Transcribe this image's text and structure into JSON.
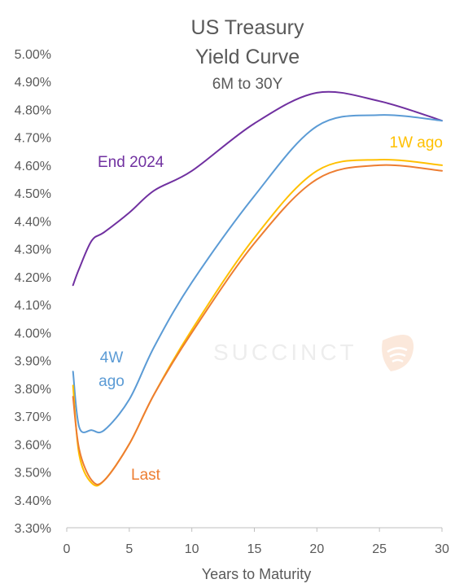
{
  "chart_data": {
    "type": "line",
    "title": [
      "US Treasury",
      "Yield Curve"
    ],
    "subtitle": "6M to 30Y",
    "xlabel": "Years to Maturity",
    "ylabel": "",
    "xlim": [
      0,
      30
    ],
    "ylim": [
      3.3,
      5.0
    ],
    "xticks": [
      0,
      5,
      10,
      15,
      20,
      25,
      30
    ],
    "yticks": [
      "3.30%",
      "3.40%",
      "3.50%",
      "3.60%",
      "3.70%",
      "3.80%",
      "3.90%",
      "4.00%",
      "4.10%",
      "4.20%",
      "4.30%",
      "4.40%",
      "4.50%",
      "4.60%",
      "4.70%",
      "4.80%",
      "4.90%",
      "5.00%"
    ],
    "grid": false,
    "watermark": "SUCCINCT",
    "series": [
      {
        "name": "End 2024",
        "color": "#7030a0",
        "label_lines": [
          "End 2024"
        ],
        "x": [
          0.5,
          1,
          2,
          3,
          5,
          7,
          10,
          15,
          20,
          25,
          30
        ],
        "values": [
          4.17,
          4.23,
          4.33,
          4.36,
          4.43,
          4.51,
          4.58,
          4.75,
          4.86,
          4.83,
          4.76
        ]
      },
      {
        "name": "4W ago",
        "color": "#5b9bd5",
        "label_lines": [
          "4W",
          "ago"
        ],
        "x": [
          0.5,
          1,
          2,
          3,
          5,
          7,
          10,
          15,
          20,
          25,
          30
        ],
        "values": [
          3.86,
          3.66,
          3.65,
          3.65,
          3.76,
          3.95,
          4.18,
          4.49,
          4.74,
          4.78,
          4.76
        ]
      },
      {
        "name": "1W ago",
        "color": "#ffc000",
        "label_lines": [
          "1W ago"
        ],
        "x": [
          0.5,
          1,
          2,
          3,
          5,
          7,
          10,
          15,
          20,
          25,
          30
        ],
        "values": [
          3.81,
          3.56,
          3.46,
          3.47,
          3.6,
          3.78,
          4.01,
          4.34,
          4.58,
          4.62,
          4.6
        ]
      },
      {
        "name": "Last",
        "color": "#ed7d31",
        "label_lines": [
          "Last"
        ],
        "x": [
          0.5,
          1,
          2,
          3,
          5,
          7,
          10,
          15,
          20,
          25,
          30
        ],
        "values": [
          3.77,
          3.58,
          3.47,
          3.47,
          3.6,
          3.78,
          4.0,
          4.32,
          4.55,
          4.6,
          4.58
        ]
      }
    ]
  }
}
